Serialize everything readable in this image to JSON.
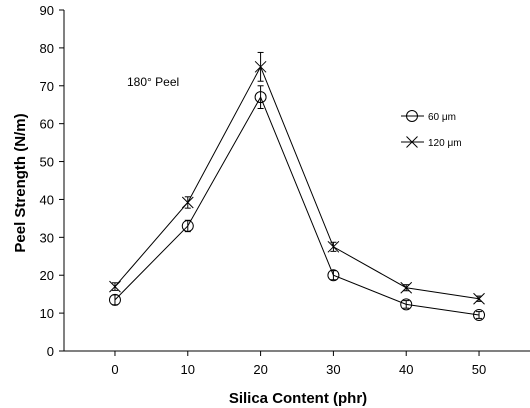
{
  "chart_data": {
    "type": "line",
    "title": "",
    "xlabel": "Silica Content (phr)",
    "ylabel": "Peel Strength (N/m)",
    "annotation": "180° Peel",
    "x": [
      0,
      10,
      20,
      30,
      40,
      50
    ],
    "xlim": [
      -7,
      57
    ],
    "ylim": [
      0,
      90
    ],
    "xticks": [
      0,
      10,
      20,
      30,
      40,
      50
    ],
    "yticks": [
      0,
      10,
      20,
      30,
      40,
      50,
      60,
      70,
      80,
      90
    ],
    "grid": false,
    "legend_position": "right",
    "series": [
      {
        "name": "60 μm",
        "marker": "circle",
        "values": [
          13.5,
          33,
          67,
          20,
          12.3,
          9.5
        ],
        "errors": [
          1.3,
          1.5,
          3.0,
          1.2,
          1.0,
          0.9
        ]
      },
      {
        "name": "120 μm",
        "marker": "x",
        "values": [
          17,
          39.2,
          75,
          27.5,
          16.7,
          13.8
        ],
        "errors": [
          1.0,
          1.5,
          3.8,
          1.2,
          0.8,
          0.7
        ]
      }
    ]
  }
}
